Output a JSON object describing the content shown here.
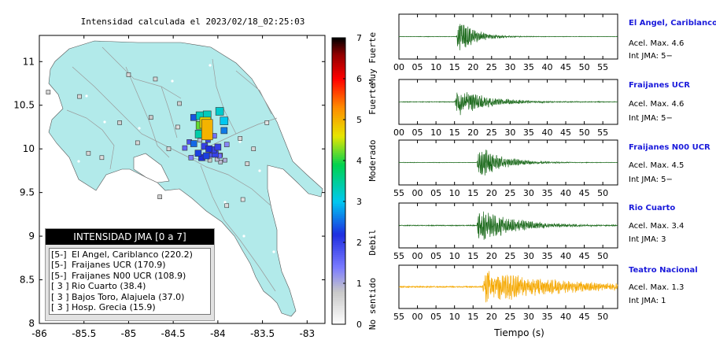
{
  "map": {
    "title": "Intensidad calculada el 2023/02/18_02:25:03",
    "x_ticks": [
      "-86",
      "-85.5",
      "-85",
      "-84.5",
      "-84",
      "-83.5",
      "-83"
    ],
    "y_ticks": [
      "8",
      "8.5",
      "9",
      "9.5",
      "10",
      "10.5",
      "11"
    ],
    "xlim": [
      -86,
      -82.8
    ],
    "ylim": [
      8,
      11.3
    ]
  },
  "colorbar": {
    "ticks": [
      "0",
      "1",
      "2",
      "3",
      "4",
      "5",
      "6",
      "7"
    ],
    "category_labels": [
      "No sentido",
      "Debil",
      "Moderado",
      "Fuerte",
      "Muy Fuerte"
    ],
    "colors": [
      "#ffffff",
      "#c8c8c8",
      "#7a7aff",
      "#1e2ee0",
      "#00c8f0",
      "#00d250",
      "#e6e600",
      "#ff8c00",
      "#ff0000",
      "#900000",
      "#000000"
    ]
  },
  "legend": {
    "header": "INTENSIDAD JMA [0 a 7]",
    "items": [
      {
        "level": "[5-]",
        "text": "El Angel, Cariblanco (220.2)"
      },
      {
        "level": "[5-]",
        "text": "Fraijanes UCR (170.9)"
      },
      {
        "level": "[5-]",
        "text": "Fraijanes N00 UCR (108.9)"
      },
      {
        "level": "[ 3 ]",
        "text": "Rio Cuarto (38.4)"
      },
      {
        "level": "[ 3 ]",
        "text": "Bajos Toro, Alajuela (37.0)"
      },
      {
        "level": "[ 3 ]",
        "text": "Hosp. Grecia (15.9)"
      }
    ]
  },
  "stations": [
    {
      "name": "El Angel, Cariblanco",
      "acc": "Acel. Max. 4.6",
      "jma": "Int JMA: 5−",
      "ticks": [
        "00",
        "05",
        "10",
        "15",
        "20",
        "25",
        "30",
        "35",
        "40",
        "45",
        "50",
        "55"
      ],
      "color": "#1d6b1d"
    },
    {
      "name": "Fraijanes UCR",
      "acc": "Acel. Max. 4.6",
      "jma": "Int JMA: 5−",
      "ticks": [
        "00",
        "05",
        "10",
        "15",
        "20",
        "25",
        "30",
        "35",
        "40",
        "45",
        "50",
        "55"
      ],
      "color": "#1d6b1d"
    },
    {
      "name": "Fraijanes N00 UCR",
      "acc": "Acel. Max. 4.5",
      "jma": "Int JMA: 5−",
      "ticks": [
        "55",
        "00",
        "05",
        "10",
        "15",
        "20",
        "25",
        "30",
        "35",
        "40",
        "45",
        "50"
      ],
      "color": "#1d6b1d"
    },
    {
      "name": "Rio Cuarto",
      "acc": "Acel. Max. 3.4",
      "jma": "Int JMA: 3",
      "ticks": [
        "55",
        "00",
        "05",
        "10",
        "15",
        "20",
        "25",
        "30",
        "35",
        "40",
        "45",
        "50"
      ],
      "color": "#1d6b1d"
    },
    {
      "name": "Teatro Nacional",
      "acc": "Acel. Max. 1.3",
      "jma": "Int JMA: 1",
      "ticks": [
        "55",
        "00",
        "05",
        "10",
        "15",
        "20",
        "25",
        "30",
        "35",
        "40",
        "45",
        "50"
      ],
      "color": "#f5a800"
    }
  ],
  "time_axis_label": "Tiempo (s)",
  "chart_data": {
    "type": "scatter",
    "title": "Intensidad calculada el 2023/02/18_02:25:03",
    "xlim": [
      -86,
      -82.8
    ],
    "ylim": [
      8,
      11.3
    ],
    "intensity_scale": [
      0,
      7
    ],
    "points": [
      {
        "lon": -84.12,
        "lat": 10.22,
        "intensity": 5.0
      },
      {
        "lon": -84.14,
        "lat": 10.3,
        "intensity": 4.7
      },
      {
        "lon": -84.2,
        "lat": 10.27,
        "intensity": 4.2
      },
      {
        "lon": -84.21,
        "lat": 10.17,
        "intensity": 3.4
      },
      {
        "lon": -84.2,
        "lat": 10.38,
        "intensity": 3.3
      },
      {
        "lon": -84.12,
        "lat": 10.39,
        "intensity": 3.3
      },
      {
        "lon": -83.98,
        "lat": 10.43,
        "intensity": 3.2
      },
      {
        "lon": -83.93,
        "lat": 10.32,
        "intensity": 3.0
      },
      {
        "lon": -83.93,
        "lat": 10.21,
        "intensity": 2.6
      },
      {
        "lon": -84.27,
        "lat": 10.36,
        "intensity": 2.4
      },
      {
        "lon": -84.13,
        "lat": 9.92,
        "intensity": 2.3
      },
      {
        "lon": -84.1,
        "lat": 10.0,
        "intensity": 2.2
      },
      {
        "lon": -84.22,
        "lat": 9.95,
        "intensity": 2.3
      },
      {
        "lon": -84.18,
        "lat": 9.9,
        "intensity": 2.2
      },
      {
        "lon": -84.03,
        "lat": 9.94,
        "intensity": 2.0
      },
      {
        "lon": -84.05,
        "lat": 9.99,
        "intensity": 2.0
      },
      {
        "lon": -84.15,
        "lat": 10.03,
        "intensity": 2.0
      },
      {
        "lon": -84.27,
        "lat": 10.06,
        "intensity": 2.5
      },
      {
        "lon": -84.0,
        "lat": 10.02,
        "intensity": 2.0
      },
      {
        "lon": -84.07,
        "lat": 9.93,
        "intensity": 1.8
      },
      {
        "lon": -83.98,
        "lat": 9.92,
        "intensity": 1.5
      },
      {
        "lon": -84.11,
        "lat": 10.1,
        "intensity": 1.9
      },
      {
        "lon": -84.32,
        "lat": 10.08,
        "intensity": 1.8
      },
      {
        "lon": -84.37,
        "lat": 10.01,
        "intensity": 1.6
      },
      {
        "lon": -84.3,
        "lat": 9.9,
        "intensity": 1.4
      },
      {
        "lon": -84.04,
        "lat": 10.15,
        "intensity": 1.5
      },
      {
        "lon": -83.9,
        "lat": 10.05,
        "intensity": 1.3
      },
      {
        "lon": -83.92,
        "lat": 9.87,
        "intensity": 1.0
      },
      {
        "lon": -83.97,
        "lat": 9.85,
        "intensity": 0.9
      },
      {
        "lon": -84.01,
        "lat": 9.88,
        "intensity": 0.9
      },
      {
        "lon": -84.09,
        "lat": 9.87,
        "intensity": 0.8
      },
      {
        "lon": -84.2,
        "lat": 10.1,
        "intensity": 0.9
      },
      {
        "lon": -83.97,
        "lat": 9.93,
        "intensity": 0.7
      },
      {
        "lon": -84.45,
        "lat": 10.25,
        "intensity": 0.5
      },
      {
        "lon": -84.55,
        "lat": 10.0,
        "intensity": 0.6
      },
      {
        "lon": -84.43,
        "lat": 10.52,
        "intensity": 0.7
      },
      {
        "lon": -84.75,
        "lat": 10.36,
        "intensity": 0.8
      },
      {
        "lon": -84.9,
        "lat": 10.07,
        "intensity": 0.6
      },
      {
        "lon": -85.1,
        "lat": 10.3,
        "intensity": 0.7
      },
      {
        "lon": -85.55,
        "lat": 10.6,
        "intensity": 0.6
      },
      {
        "lon": -85.0,
        "lat": 10.85,
        "intensity": 0.6
      },
      {
        "lon": -84.7,
        "lat": 10.8,
        "intensity": 0.6
      },
      {
        "lon": -85.3,
        "lat": 9.9,
        "intensity": 0.5
      },
      {
        "lon": -85.45,
        "lat": 9.95,
        "intensity": 0.6
      },
      {
        "lon": -85.9,
        "lat": 10.65,
        "intensity": 0.6
      },
      {
        "lon": -83.75,
        "lat": 10.12,
        "intensity": 0.6
      },
      {
        "lon": -83.6,
        "lat": 10.0,
        "intensity": 0.6
      },
      {
        "lon": -83.45,
        "lat": 10.3,
        "intensity": 0.4
      },
      {
        "lon": -83.67,
        "lat": 9.83,
        "intensity": 0.6
      },
      {
        "lon": -84.65,
        "lat": 9.45,
        "intensity": 0.7
      },
      {
        "lon": -83.9,
        "lat": 9.35,
        "intensity": 0.5
      },
      {
        "lon": -83.72,
        "lat": 9.42,
        "intensity": 0.4
      }
    ]
  }
}
